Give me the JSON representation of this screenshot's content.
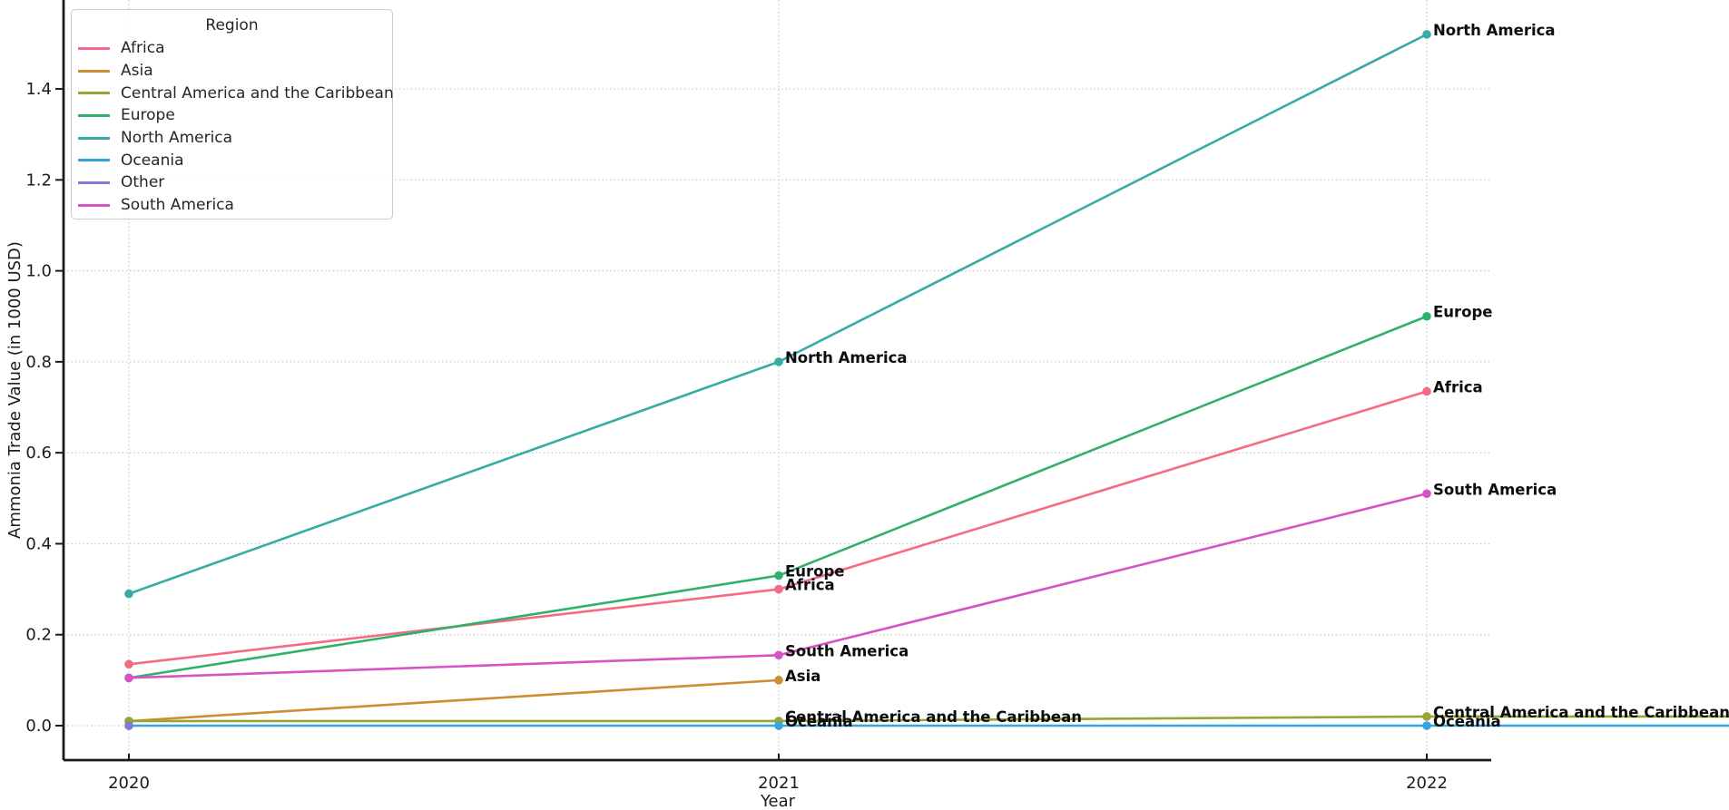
{
  "chart_data": {
    "type": "line",
    "title": "",
    "xlabel": "Year",
    "ylabel": "Ammonia Trade Value (in 1000 USD)",
    "x_ticks": [
      "2020",
      "2021",
      "2022"
    ],
    "y_ticks": [
      0.0,
      0.2,
      0.4,
      0.6,
      0.8,
      1.0,
      1.2,
      1.4
    ],
    "ylim": [
      -0.08,
      1.6
    ],
    "grid": "dotted light-gray horizontal and vertical gridlines",
    "legend": {
      "title": "Region",
      "position": "upper left"
    },
    "series": [
      {
        "name": "Africa",
        "color": "#f56a84",
        "x": [
          2020,
          2021,
          2022
        ],
        "values": [
          0.135,
          0.3,
          0.735
        ],
        "tail_to_right_edge": false
      },
      {
        "name": "Asia",
        "color": "#cd8d32",
        "x": [
          2020,
          2021
        ],
        "values": [
          0.01,
          0.1
        ],
        "tail_to_right_edge": false
      },
      {
        "name": "Central America and the Caribbean",
        "color": "#99a433",
        "x": [
          2020,
          2021,
          2022
        ],
        "values": [
          0.01,
          0.01,
          0.02
        ],
        "tail_to_right_edge": true
      },
      {
        "name": "Europe",
        "color": "#2fb16a",
        "x": [
          2020,
          2021,
          2022
        ],
        "values": [
          0.105,
          0.33,
          0.9
        ],
        "tail_to_right_edge": false
      },
      {
        "name": "North America",
        "color": "#35aca4",
        "x": [
          2020,
          2021,
          2022
        ],
        "values": [
          0.29,
          0.8,
          1.52
        ],
        "tail_to_right_edge": false
      },
      {
        "name": "Oceania",
        "color": "#35a5dc",
        "x": [
          2020,
          2021,
          2022
        ],
        "values": [
          0.0,
          0.0,
          0.0
        ],
        "tail_to_right_edge": true
      },
      {
        "name": "Other",
        "color": "#8a75d8",
        "x": [
          2020
        ],
        "values": [
          0.0
        ],
        "tail_to_right_edge": false
      },
      {
        "name": "South America",
        "color": "#d653c5",
        "x": [
          2020,
          2021,
          2022
        ],
        "values": [
          0.105,
          0.155,
          0.51
        ],
        "tail_to_right_edge": false
      }
    ],
    "annotations": [
      {
        "text": "North America",
        "x": 2021,
        "y": 0.8
      },
      {
        "text": "Europe",
        "x": 2021,
        "y": 0.33
      },
      {
        "text": "Africa",
        "x": 2021,
        "y": 0.3
      },
      {
        "text": "South America",
        "x": 2021,
        "y": 0.155
      },
      {
        "text": "Asia",
        "x": 2021,
        "y": 0.1
      },
      {
        "text": "Central America and the Caribbean",
        "x": 2021,
        "y": 0.01
      },
      {
        "text": "Oceania",
        "x": 2021,
        "y": 0.0
      },
      {
        "text": "North America",
        "x": 2022,
        "y": 1.52
      },
      {
        "text": "Europe",
        "x": 2022,
        "y": 0.9
      },
      {
        "text": "Africa",
        "x": 2022,
        "y": 0.735
      },
      {
        "text": "South America",
        "x": 2022,
        "y": 0.51
      },
      {
        "text": "Central America and the Caribbean",
        "x": 2022,
        "y": 0.02
      },
      {
        "text": "Oceania",
        "x": 2022,
        "y": 0.0
      }
    ]
  },
  "colors": {
    "grid": "#c8c8c8",
    "spine": "#1a1a1a",
    "tick_text": "#1c1c1c",
    "annotation_text": "#0d0d0d",
    "background": "#ffffff"
  }
}
